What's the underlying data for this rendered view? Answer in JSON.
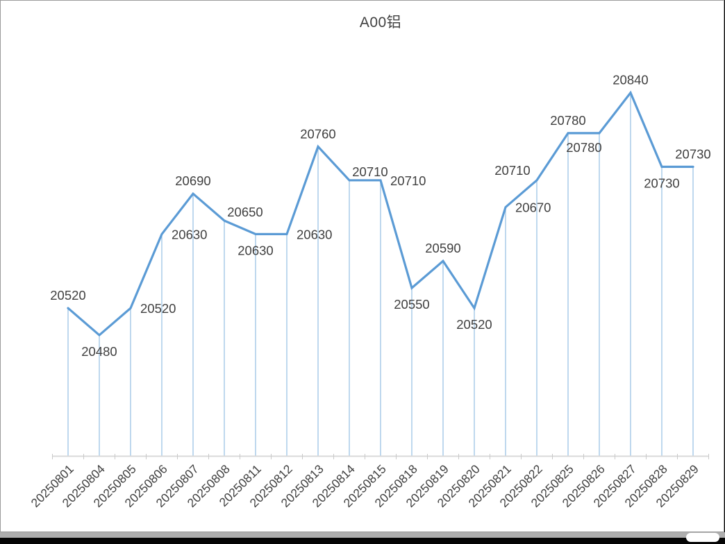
{
  "window": {
    "title": "A00铝"
  },
  "chart_data": {
    "type": "line",
    "title": "A00铝",
    "categories": [
      "20250801",
      "20250804",
      "20250805",
      "20250806",
      "20250807",
      "20250808",
      "20250811",
      "20250812",
      "20250813",
      "20250814",
      "20250815",
      "20250818",
      "20250819",
      "20250820",
      "20250821",
      "20250822",
      "20250825",
      "20250826",
      "20250827",
      "20250828",
      "20250829"
    ],
    "series": [
      {
        "name": "A00铝",
        "values": [
          20520,
          20480,
          20520,
          20630,
          20690,
          20650,
          20630,
          20630,
          20760,
          20710,
          20710,
          20550,
          20590,
          20520,
          20670,
          20710,
          20780,
          20780,
          20840,
          20730,
          20730
        ]
      }
    ],
    "xlabel": "",
    "ylabel": "",
    "ylim": [
      20300,
      20900
    ],
    "grid": false,
    "legend_position": "none",
    "x_label_rotation": -45,
    "data_labels_visible": true,
    "label_placements": [
      "above",
      "below",
      "right",
      "right",
      "above",
      "above-right",
      "below",
      "right",
      "above",
      "above-right",
      "right",
      "below",
      "above",
      "below",
      "right",
      "above-left",
      "above",
      "below-left",
      "above",
      "below",
      "above"
    ],
    "colors": {
      "line": "#5B9BD5",
      "drop_line": "#9CC2E5",
      "axis_line": "#D9D9D9",
      "tick": "#C9C9C9",
      "label_text": "#3F3F3F",
      "title_text": "#404040",
      "background": "#FFFFFF"
    }
  }
}
